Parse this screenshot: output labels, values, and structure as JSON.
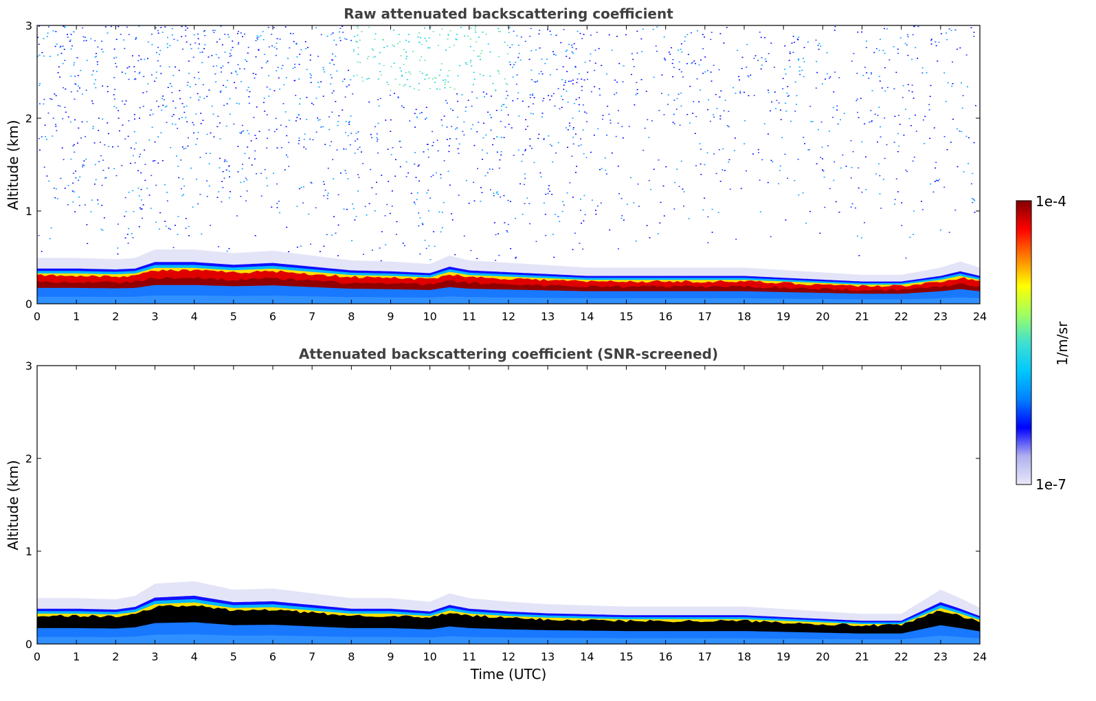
{
  "chart_data": [
    {
      "type": "heatmap",
      "title": "Raw attenuated backscattering coefficient",
      "xlabel": "",
      "ylabel": "Altitude (km)",
      "xlim": [
        0,
        24
      ],
      "ylim": [
        0,
        3
      ],
      "xticks": [
        "0",
        "1",
        "2",
        "3",
        "4",
        "5",
        "6",
        "7",
        "8",
        "9",
        "10",
        "11",
        "12",
        "13",
        "14",
        "15",
        "16",
        "17",
        "18",
        "19",
        "20",
        "21",
        "22",
        "23",
        "24"
      ],
      "yticks": [
        "0",
        "1",
        "2",
        "3"
      ],
      "aerosol_layer_top_km": [
        [
          0,
          0.38
        ],
        [
          1,
          0.38
        ],
        [
          2,
          0.37
        ],
        [
          2.5,
          0.38
        ],
        [
          3,
          0.45
        ],
        [
          4,
          0.45
        ],
        [
          5,
          0.42
        ],
        [
          6,
          0.44
        ],
        [
          7,
          0.4
        ],
        [
          8,
          0.36
        ],
        [
          9,
          0.35
        ],
        [
          10,
          0.33
        ],
        [
          10.5,
          0.4
        ],
        [
          11,
          0.36
        ],
        [
          12,
          0.34
        ],
        [
          13,
          0.32
        ],
        [
          14,
          0.3
        ],
        [
          15,
          0.3
        ],
        [
          16,
          0.3
        ],
        [
          17,
          0.3
        ],
        [
          18,
          0.3
        ],
        [
          19,
          0.28
        ],
        [
          20,
          0.26
        ],
        [
          21,
          0.24
        ],
        [
          22,
          0.24
        ],
        [
          23,
          0.3
        ],
        [
          23.5,
          0.35
        ],
        [
          24,
          0.3
        ]
      ],
      "noise_level": "high above 0.5 km",
      "grid": false
    },
    {
      "type": "heatmap",
      "title": "Attenuated backscattering coefficient (SNR-screened)",
      "xlabel": "Time (UTC)",
      "ylabel": "Altitude (km)",
      "xlim": [
        0,
        24
      ],
      "ylim": [
        0,
        3
      ],
      "xticks": [
        "0",
        "1",
        "2",
        "3",
        "4",
        "5",
        "6",
        "7",
        "8",
        "9",
        "10",
        "11",
        "12",
        "13",
        "14",
        "15",
        "16",
        "17",
        "18",
        "19",
        "20",
        "21",
        "22",
        "23",
        "24"
      ],
      "yticks": [
        "0",
        "1",
        "2",
        "3"
      ],
      "aerosol_layer_top_km": [
        [
          0,
          0.38
        ],
        [
          1,
          0.38
        ],
        [
          2,
          0.37
        ],
        [
          2.5,
          0.4
        ],
        [
          3,
          0.5
        ],
        [
          4,
          0.52
        ],
        [
          5,
          0.45
        ],
        [
          6,
          0.46
        ],
        [
          7,
          0.42
        ],
        [
          8,
          0.38
        ],
        [
          9,
          0.38
        ],
        [
          10,
          0.35
        ],
        [
          10.5,
          0.42
        ],
        [
          11,
          0.38
        ],
        [
          12,
          0.35
        ],
        [
          13,
          0.33
        ],
        [
          14,
          0.32
        ],
        [
          15,
          0.31
        ],
        [
          16,
          0.31
        ],
        [
          17,
          0.31
        ],
        [
          18,
          0.31
        ],
        [
          19,
          0.29
        ],
        [
          20,
          0.27
        ],
        [
          21,
          0.25
        ],
        [
          22,
          0.25
        ],
        [
          23,
          0.45
        ],
        [
          23.5,
          0.38
        ],
        [
          24,
          0.3
        ]
      ],
      "noise_level": "screened",
      "grid": false
    }
  ],
  "colorbar": {
    "label": "1/m/sr",
    "min_label": "1e-7",
    "max_label": "1e-4",
    "colors": [
      "#e8e8f8",
      "#b0b0f0",
      "#0000ff",
      "#0080ff",
      "#00c8ff",
      "#40e0d0",
      "#a0ff60",
      "#ffff00",
      "#ff8000",
      "#ff0000",
      "#800000"
    ]
  }
}
